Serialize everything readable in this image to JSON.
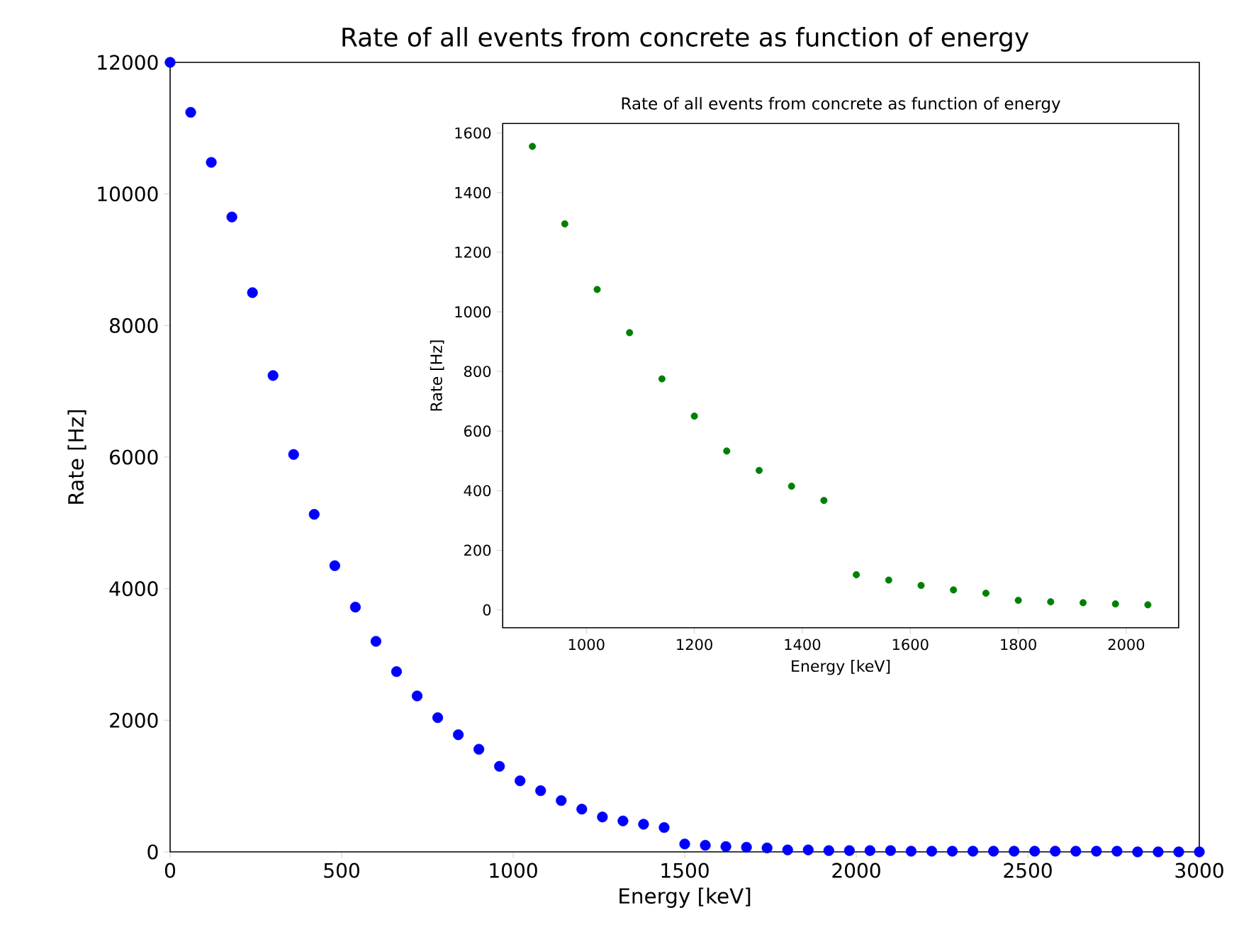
{
  "chart_data": [
    {
      "type": "scatter",
      "title": "Rate of all events from concrete as function of energy",
      "xlabel": "Energy [keV]",
      "ylabel": "Rate [Hz]",
      "color": "#0000ff",
      "xlim": [
        0,
        3000
      ],
      "ylim": [
        0,
        12000
      ],
      "xticks": [
        0,
        500,
        1000,
        1500,
        2000,
        2500,
        3000
      ],
      "yticks": [
        0,
        2000,
        4000,
        6000,
        8000,
        10000,
        12000
      ],
      "x": [
        0,
        60,
        120,
        180,
        240,
        300,
        360,
        420,
        480,
        540,
        600,
        660,
        720,
        780,
        840,
        900,
        960,
        1020,
        1080,
        1140,
        1200,
        1260,
        1320,
        1380,
        1440,
        1500,
        1560,
        1620,
        1680,
        1740,
        1800,
        1860,
        1920,
        1980,
        2040,
        2100,
        2160,
        2220,
        2280,
        2340,
        2400,
        2460,
        2520,
        2580,
        2640,
        2700,
        2760,
        2820,
        2880,
        2940,
        3000
      ],
      "values": [
        12000,
        11240,
        10480,
        9650,
        8500,
        7240,
        6040,
        5130,
        4350,
        3720,
        3200,
        2740,
        2370,
        2040,
        1780,
        1560,
        1300,
        1080,
        930,
        780,
        650,
        530,
        470,
        420,
        370,
        120,
        100,
        80,
        70,
        60,
        30,
        30,
        20,
        20,
        20,
        20,
        10,
        10,
        10,
        10,
        10,
        10,
        10,
        10,
        10,
        10,
        10,
        0,
        0,
        0,
        0
      ]
    },
    {
      "type": "scatter",
      "title": "Rate of all events from concrete as function of energy",
      "xlabel": "Energy [keV]",
      "ylabel": "Rate [Hz]",
      "color": "#008000",
      "xlim": [
        845,
        2097
      ],
      "ylim": [
        -60,
        1632
      ],
      "xticks": [
        1000,
        1200,
        1400,
        1600,
        1800,
        2000
      ],
      "yticks": [
        0,
        200,
        400,
        600,
        800,
        1000,
        1200,
        1400,
        1600
      ],
      "x": [
        900,
        960,
        1020,
        1080,
        1140,
        1200,
        1260,
        1320,
        1380,
        1440,
        1500,
        1560,
        1620,
        1680,
        1740,
        1800,
        1860,
        1920,
        1980,
        2040
      ],
      "values": [
        1555,
        1295,
        1075,
        930,
        775,
        650,
        533,
        468,
        415,
        367,
        118,
        100,
        82,
        67,
        56,
        32,
        27,
        24,
        20,
        17
      ]
    }
  ]
}
